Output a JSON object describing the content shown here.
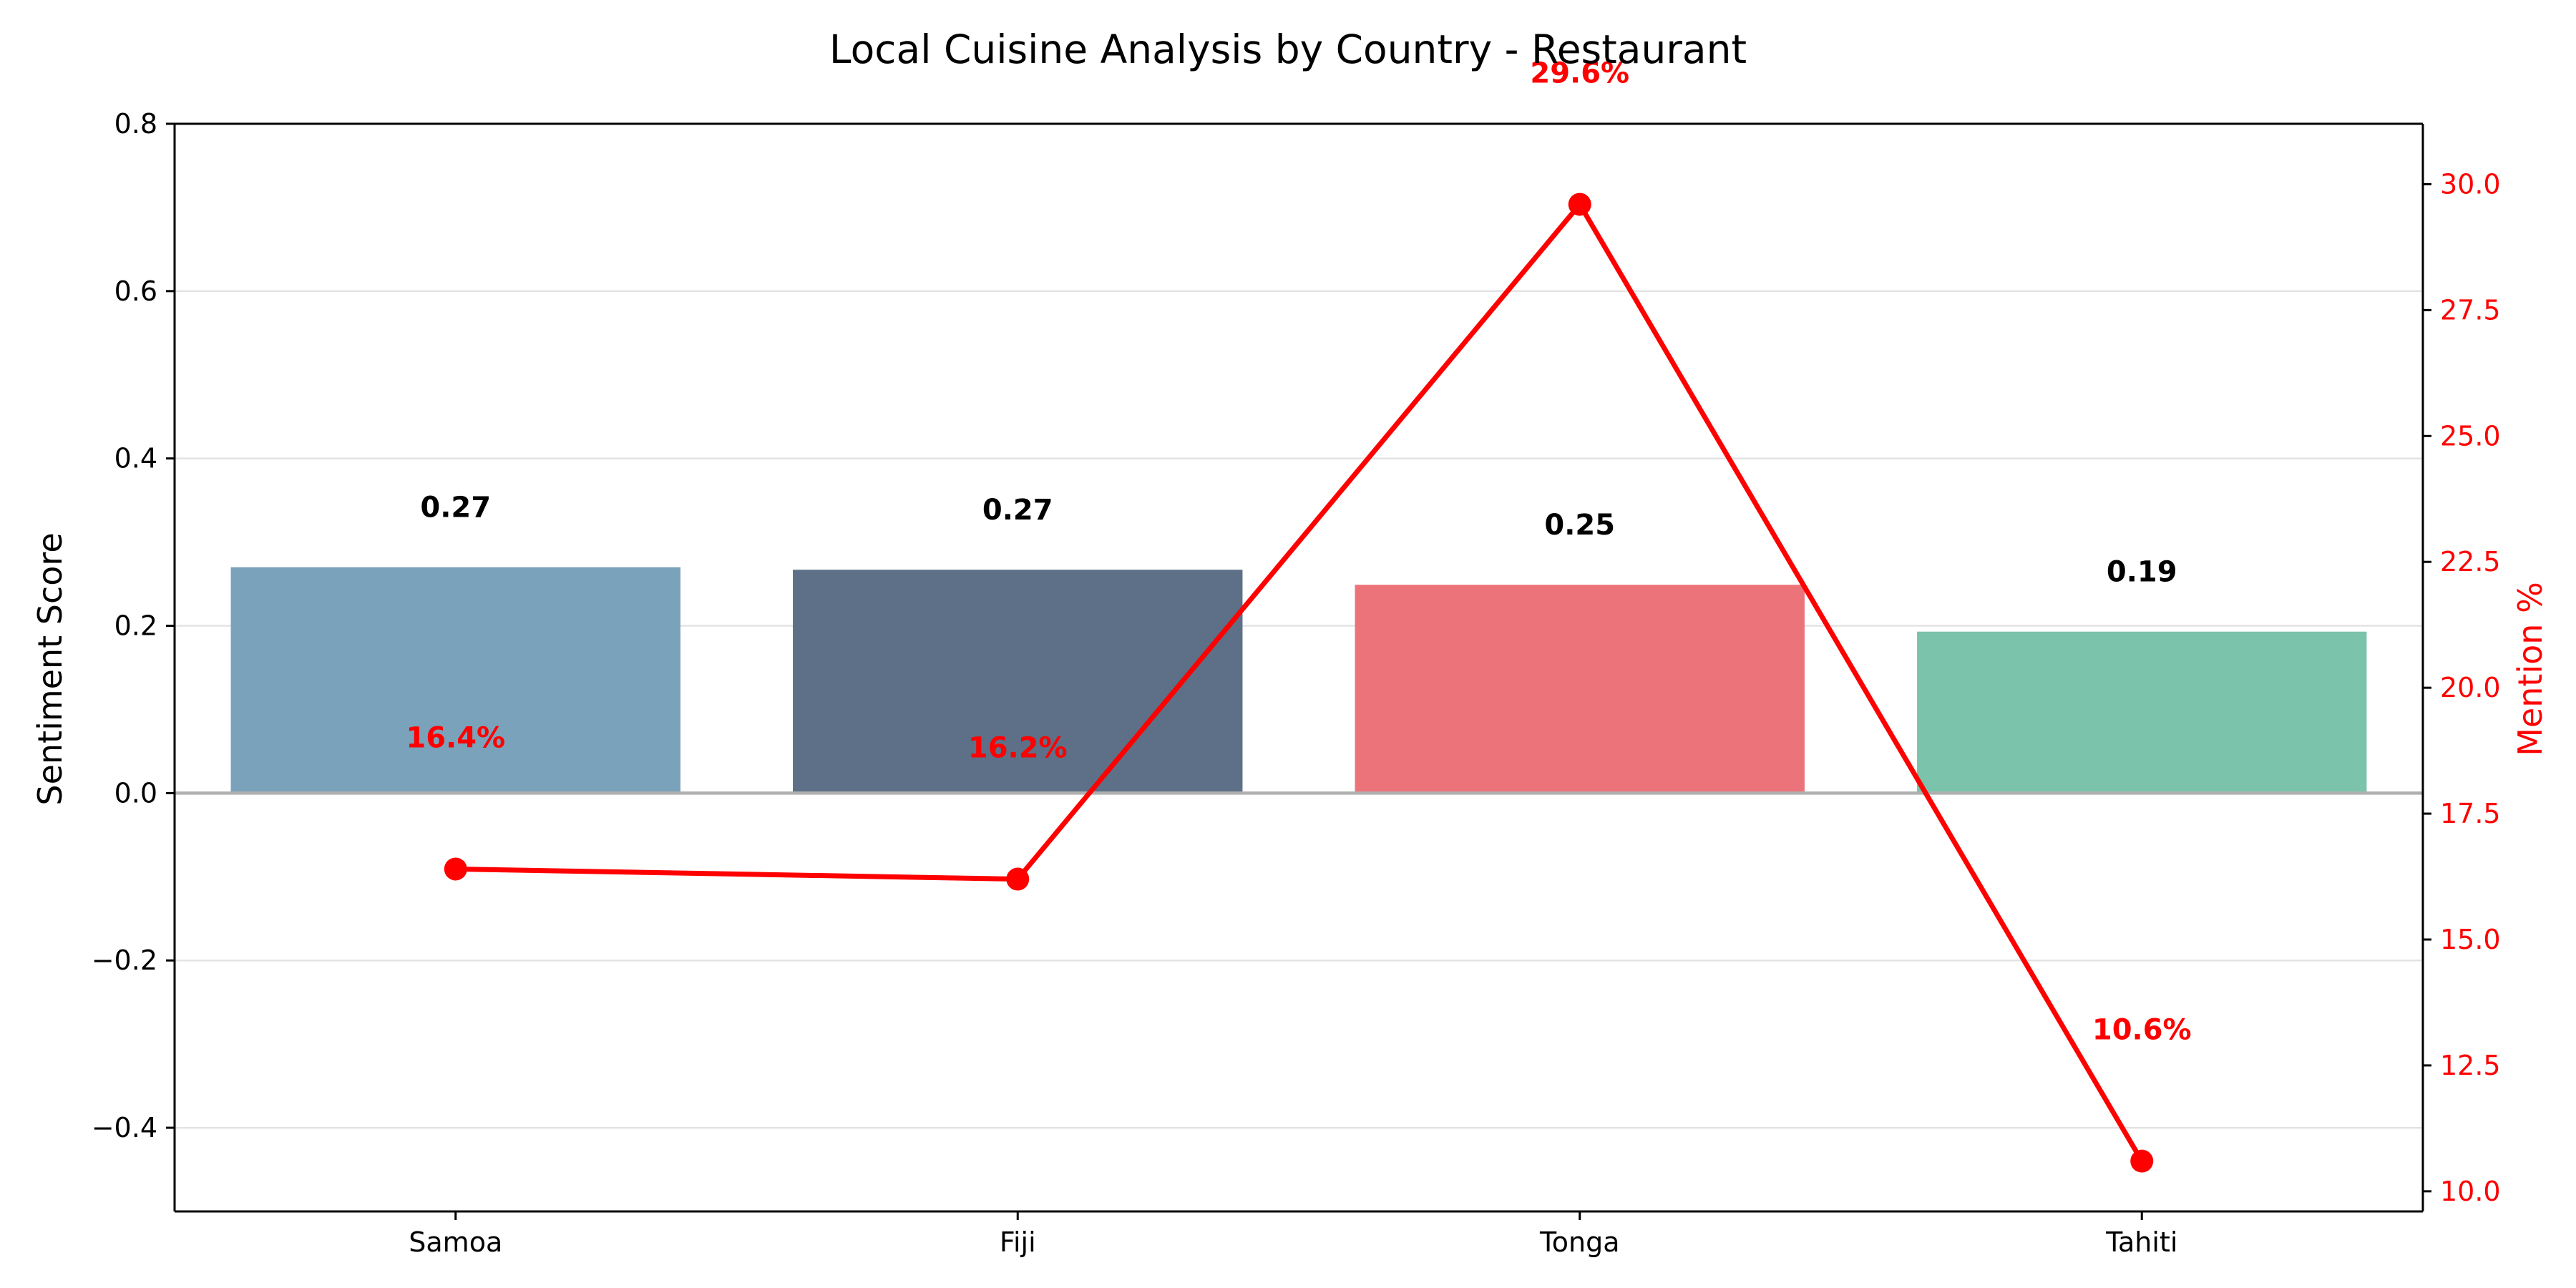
{
  "chart_data": {
    "type": "bar",
    "title": "Local Cuisine Analysis by Country - Restaurant",
    "categories": [
      "Samoa",
      "Fiji",
      "Tonga",
      "Tahiti"
    ],
    "ylabel": "Sentiment Score",
    "ylabel_right": "Mention %",
    "ylim": [
      -0.5,
      0.8
    ],
    "ylim_right": [
      9.6,
      31.2
    ],
    "yticks": [
      -0.4,
      -0.2,
      0.0,
      0.2,
      0.4,
      0.6,
      0.8
    ],
    "yticks_labels": [
      "−0.4",
      "−0.2",
      "0.0",
      "0.2",
      "0.4",
      "0.6",
      "0.8"
    ],
    "yticks_right": [
      10.0,
      12.5,
      15.0,
      17.5,
      20.0,
      22.5,
      25.0,
      27.5,
      30.0
    ],
    "yticks_right_labels": [
      "10.0",
      "12.5",
      "15.0",
      "17.5",
      "20.0",
      "22.5",
      "25.0",
      "27.5",
      "30.0"
    ],
    "grid": true,
    "series": [
      {
        "type": "bar",
        "axis": "left",
        "values": [
          0.27,
          0.267,
          0.249,
          0.193
        ],
        "labels": [
          "0.27",
          "0.27",
          "0.25",
          "0.19"
        ],
        "colors": [
          "#7aa2bb",
          "#5e7088",
          "#ed737a",
          "#7bc3ab"
        ]
      },
      {
        "type": "line",
        "axis": "right",
        "values": [
          16.4,
          16.2,
          29.6,
          10.6
        ],
        "labels": [
          "16.4%",
          "16.2%",
          "29.6%",
          "10.6%"
        ],
        "color": "#ff0000"
      }
    ]
  }
}
